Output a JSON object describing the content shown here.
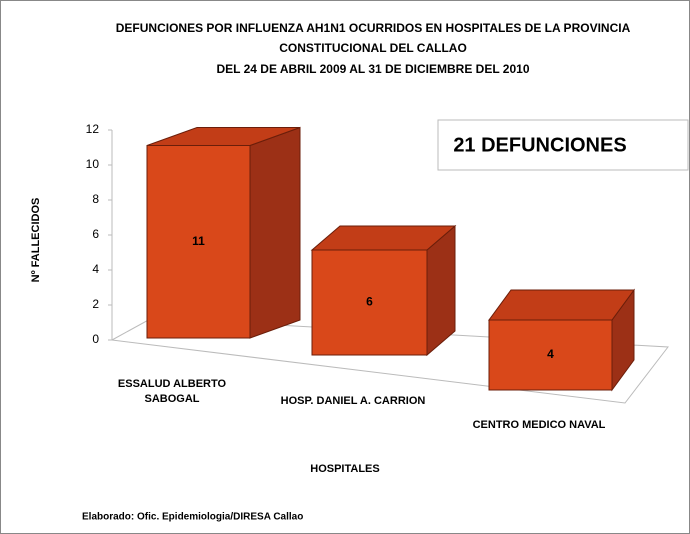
{
  "chart_data": {
    "type": "bar3d",
    "title": [
      "DEFUNCIONES  POR INFLUENZA AH1N1 OCURRIDOS EN HOSPITALES DE LA PROVINCIA",
      "CONSTITUCIONAL DEL CALLAO",
      "DEL 24 DE ABRIL 2009 AL 31 DE DICIEMBRE DEL 2010"
    ],
    "y_label": "Nº FALLECIDOS",
    "x_label": "HOSPITALES",
    "annotation": "21 DEFUNCIONES",
    "source": "Elaborado: Ofic. Epidemiologia/DIRESA Callao",
    "categories": [
      "ESSALUD ALBERTO SABOGAL",
      "HOSP. DANIEL A. CARRION",
      "CENTRO MEDICO NAVAL"
    ],
    "values": [
      11,
      6,
      4
    ],
    "color": "#d9481a",
    "ylim": [
      0,
      12
    ],
    "yticks": [
      0,
      2,
      4,
      6,
      8,
      10,
      12
    ]
  }
}
